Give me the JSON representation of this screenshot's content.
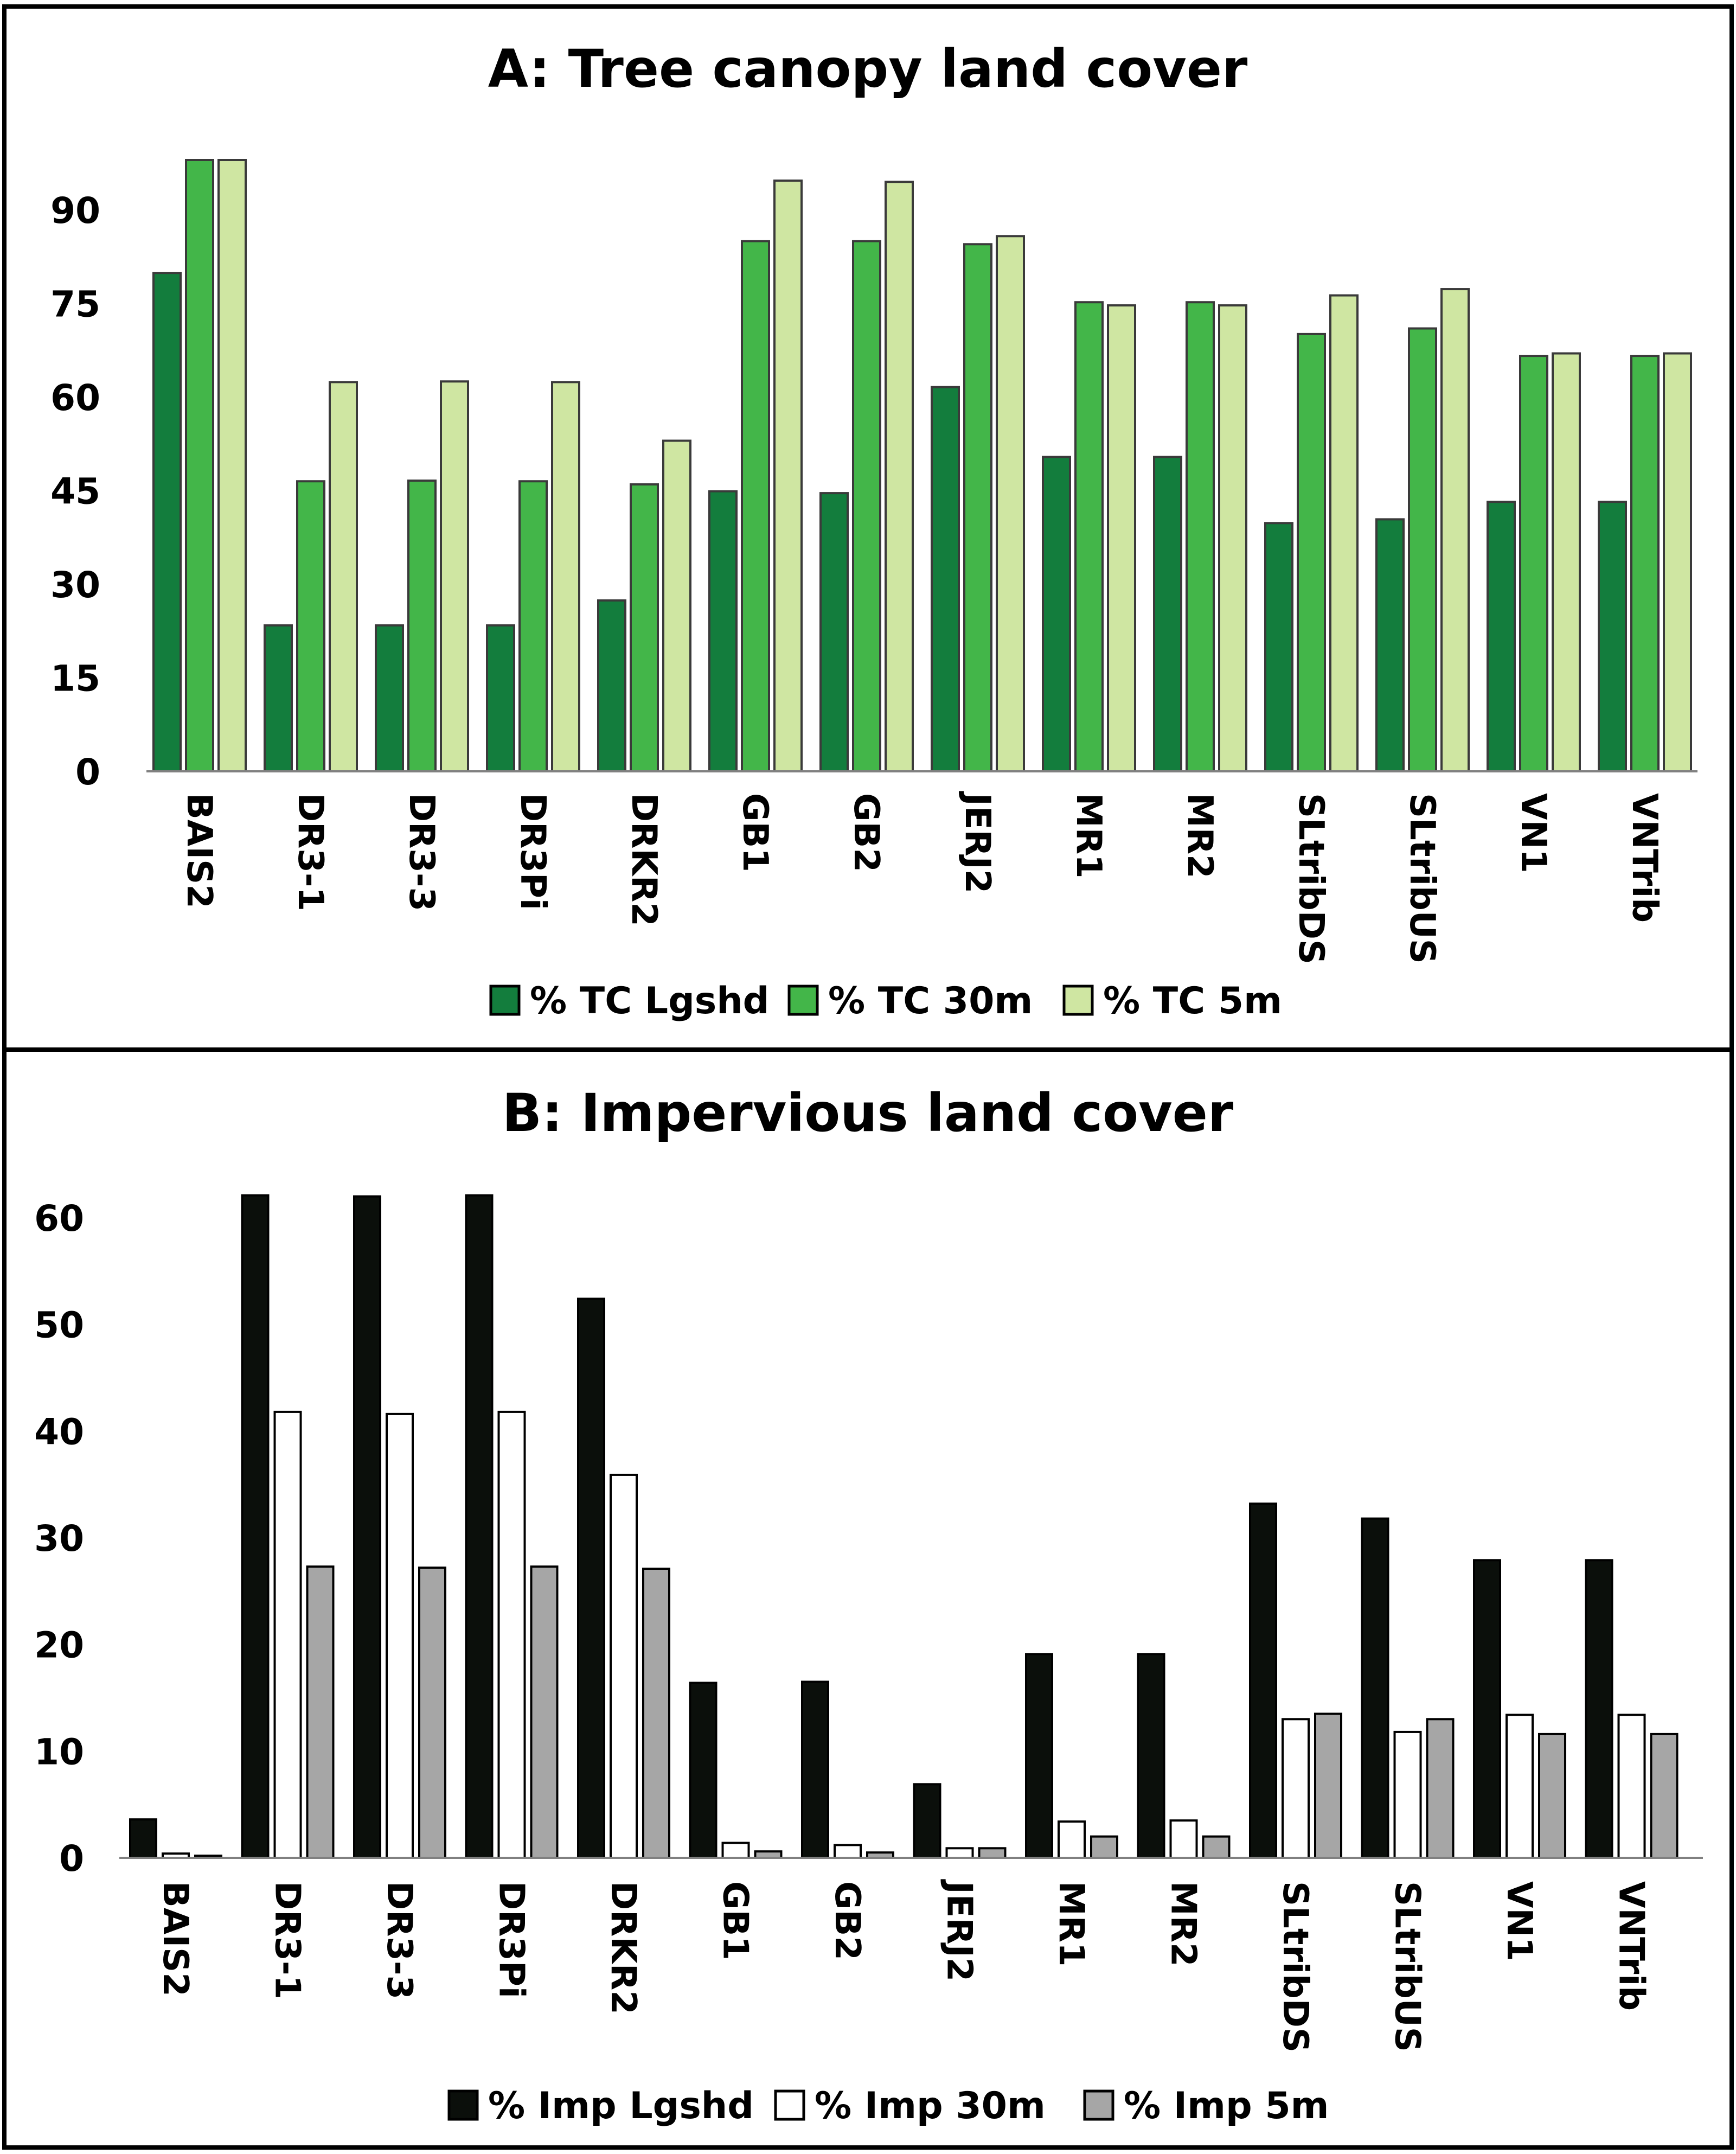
{
  "chart_data": [
    {
      "type": "bar",
      "title": "A: Tree canopy land cover",
      "xlabel": "",
      "ylabel": "",
      "ylim": [
        0,
        99
      ],
      "yticks": [
        0,
        15,
        30,
        45,
        60,
        75,
        90
      ],
      "legend_position": "bottom",
      "categories": [
        "BAIS2",
        "DR3-1",
        "DR3-3",
        "DR3Pi",
        "DRKR2",
        "GB1",
        "GB2",
        "JERJ2",
        "MR1",
        "MR2",
        "SLtribDS",
        "SLtribUS",
        "VN1",
        "VNTrib"
      ],
      "series": [
        {
          "name": "% TC Lgshd",
          "color": "#137d3d",
          "values": [
            79.9,
            23.4,
            23.4,
            23.4,
            27.4,
            44.9,
            44.6,
            61.6,
            50.4,
            50.4,
            39.8,
            40.4,
            43.2,
            43.2
          ]
        },
        {
          "name": "% TC 30m",
          "color": "#43b649",
          "values": [
            98.0,
            46.5,
            46.6,
            46.5,
            46.0,
            85.0,
            85.0,
            84.5,
            75.2,
            75.2,
            70.1,
            71.0,
            66.6,
            66.6
          ]
        },
        {
          "name": "% TC 5m",
          "color": "#cfe6a2",
          "values": [
            98.0,
            62.4,
            62.5,
            62.4,
            53.0,
            94.7,
            94.5,
            85.8,
            74.7,
            74.7,
            76.3,
            77.3,
            67.0,
            67.0
          ]
        }
      ]
    },
    {
      "type": "bar",
      "title": "B: Impervious land cover",
      "xlabel": "",
      "ylabel": "",
      "ylim": [
        0,
        62
      ],
      "yticks": [
        0,
        10,
        20,
        30,
        40,
        50,
        60
      ],
      "legend_position": "bottom",
      "categories": [
        "BAIS2",
        "DR3-1",
        "DR3-3",
        "DR3Pi",
        "DRKR2",
        "GB1",
        "GB2",
        "JERJ2",
        "MR1",
        "MR2",
        "SLtribDS",
        "SLtribUS",
        "VN1",
        "VNTrib"
      ],
      "series": [
        {
          "name": "% Imp Lgshd",
          "color": "#0b0f0b",
          "values": [
            3.6,
            62.1,
            62.0,
            62.1,
            52.4,
            16.4,
            16.5,
            6.9,
            19.1,
            19.1,
            33.2,
            31.8,
            27.9,
            27.9
          ]
        },
        {
          "name": "% Imp 30m",
          "color": "#ffffff",
          "values": [
            0.4,
            41.8,
            41.6,
            41.8,
            35.9,
            1.4,
            1.2,
            0.9,
            3.4,
            3.5,
            13.0,
            11.8,
            13.4,
            13.4
          ]
        },
        {
          "name": "% Imp 5m",
          "color": "#a6a6a6",
          "values": [
            0.2,
            27.3,
            27.2,
            27.3,
            27.1,
            0.6,
            0.5,
            0.9,
            2.0,
            2.0,
            13.5,
            13.0,
            11.6,
            11.6
          ]
        }
      ]
    }
  ]
}
